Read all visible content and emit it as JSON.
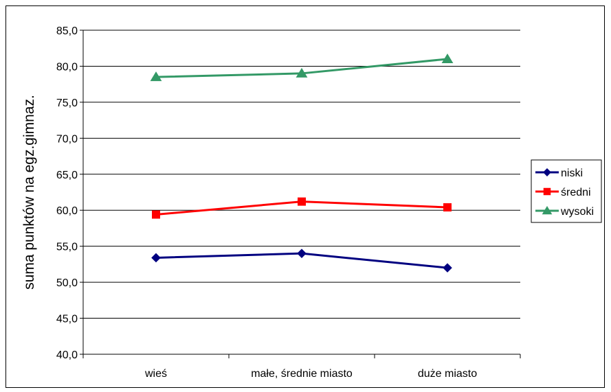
{
  "chart_data": {
    "type": "line",
    "title": "",
    "xlabel": "",
    "ylabel": "suma punktów na egz.gimnaz.",
    "categories": [
      "wieś",
      "małe, średnie miasto",
      "duże miasto"
    ],
    "ylim": [
      40,
      85
    ],
    "yticks": [
      "40,0",
      "45,0",
      "50,0",
      "55,0",
      "60,0",
      "65,0",
      "70,0",
      "75,0",
      "80,0",
      "85,0"
    ],
    "grid": true,
    "legend_position": "right",
    "series": [
      {
        "name": "niski",
        "values": [
          53.4,
          54.0,
          52.0
        ],
        "color": "#000080",
        "marker": "diamond"
      },
      {
        "name": "średni",
        "values": [
          59.4,
          61.2,
          60.4
        ],
        "color": "#ff0000",
        "marker": "square"
      },
      {
        "name": "wysoki",
        "values": [
          78.5,
          79.0,
          81.0
        ],
        "color": "#339966",
        "marker": "triangle"
      }
    ]
  }
}
